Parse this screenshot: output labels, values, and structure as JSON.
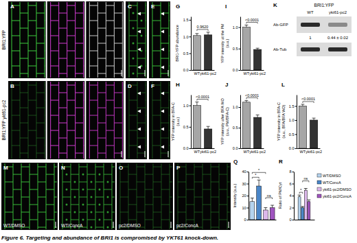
{
  "row_labels": [
    "BRI1:YFP",
    "BRI1:YFP ykt61-pc2"
  ],
  "images": [
    {
      "label": "A"
    },
    {
      "label": "B"
    },
    {
      "label": "C"
    },
    {
      "label": "D"
    },
    {
      "label": "E"
    },
    {
      "label": "F"
    },
    {
      "label": "M",
      "text": "WT/DMSO"
    },
    {
      "label": "N",
      "text": "WT/ConcA"
    },
    {
      "label": "O",
      "text": "pc2/DMSO"
    },
    {
      "label": "P",
      "text": "pc2/ConcA"
    }
  ],
  "blot": {
    "label": "K",
    "title": "BRI1:YFP",
    "lanes": [
      "WT",
      "ykt61-pc2"
    ],
    "rows": [
      "Ab-GFP",
      "Ab-Tub"
    ],
    "quantification": [
      "1",
      "0.44 ± 0.02"
    ]
  },
  "chart_data": [
    {
      "type": "bar",
      "title": "G",
      "y_label": [
        "BRI1-YFP abundance"
      ],
      "categories": [
        "WT",
        "ykt61-pc2"
      ],
      "values": [
        1.03,
        1.05
      ],
      "errors": [
        0.06,
        0.08
      ],
      "colors": [
        "#a6a6a6",
        "#333333"
      ],
      "ylim": [
        0,
        1.6
      ],
      "yticks": [
        {
          "value": 0,
          "label": "0.0"
        },
        0.5,
        {
          "value": 1,
          "label": "1.0"
        },
        1.5
      ],
      "annotations": [
        {
          "text": "0.9620",
          "between": [
            0,
            1
          ]
        }
      ]
    },
    {
      "type": "bar",
      "title": "H",
      "y_label": [
        "YFP intensity in BFA-C",
        "(a.u.)"
      ],
      "categories": [
        "WT",
        "ykt61-pc2"
      ],
      "values": [
        1,
        0.45
      ],
      "errors": [
        0.08,
        0.06
      ],
      "colors": [
        "#a6a6a6",
        "#333333"
      ],
      "ylim": [
        0,
        1.25
      ],
      "yticks": [
        {
          "value": 0,
          "label": "0.0"
        },
        0.5,
        {
          "value": 1,
          "label": "1.0"
        }
      ],
      "annotations": [
        {
          "text": "<0.0001",
          "between": [
            0,
            1
          ]
        }
      ]
    },
    {
      "type": "bar",
      "title": "I",
      "y_label": [
        "YFP intensity at the PM",
        "(a.u.)"
      ],
      "categories": [
        "WT",
        "ykt61-pc2"
      ],
      "values": [
        1,
        0.48
      ],
      "errors": [
        0.05,
        0.03
      ],
      "colors": [
        "#a6a6a6",
        "#333333"
      ],
      "ylim": [
        0,
        1.25
      ],
      "yticks": [
        {
          "value": 0,
          "label": "0.0"
        },
        0.5,
        {
          "value": 1,
          "label": "1.0"
        }
      ],
      "annotations": [
        {
          "text": "<0.0001",
          "between": [
            0,
            1
          ]
        }
      ]
    },
    {
      "type": "bar",
      "title": "J",
      "y_label": [
        "YFP intensity after BFA WO",
        "(a.u., PM/BFA-C)"
      ],
      "categories": [
        "WT",
        "ykt61-pc2"
      ],
      "values": [
        1.12,
        0.75
      ],
      "errors": [
        0.04,
        0.06
      ],
      "colors": [
        "#a6a6a6",
        "#333333"
      ],
      "ylim": [
        0,
        1.3
      ],
      "yticks": [
        {
          "value": 0,
          "label": "0.0"
        },
        0.5,
        {
          "value": 1,
          "label": "1.0"
        }
      ],
      "annotations": [
        {
          "text": "<0.0001",
          "between": [
            0,
            1
          ]
        }
      ]
    },
    {
      "type": "bar",
      "title": "L",
      "y_label": [
        "YFP intensity in BFA-C",
        "(a.u., BFA/BFA WO)"
      ],
      "categories": [
        "WT",
        "ykt61-pc2"
      ],
      "values": [
        1.5,
        1
      ],
      "errors": [
        0.06,
        0.07
      ],
      "colors": [
        "#a6a6a6",
        "#333333"
      ],
      "ylim": [
        0,
        1.9
      ],
      "yticks": [
        {
          "value": 0,
          "label": "0.0"
        },
        0.5,
        {
          "value": 1,
          "label": "1.0"
        },
        1.5
      ],
      "annotations": [
        {
          "text": "<0.0001",
          "between": [
            0,
            1
          ]
        }
      ]
    },
    {
      "type": "bar",
      "title": "Q",
      "y_label": [
        "Intensity (a.u.)"
      ],
      "categories": [
        null,
        null,
        null,
        null
      ],
      "values": [
        15,
        28,
        8,
        10
      ],
      "errors": [
        3,
        5,
        2,
        2
      ],
      "colors": [
        "#b4d3ee",
        "#4a86c8",
        "#dcb8ea",
        "#a055c0"
      ],
      "ylim": [
        0,
        40
      ],
      "yticks": [
        0,
        10,
        20,
        30,
        40
      ],
      "annotations": [
        {
          "text": "*",
          "between": [
            0,
            1
          ]
        },
        {
          "text": "*",
          "between": [
            0,
            2
          ]
        },
        {
          "text": "ns",
          "between": [
            2,
            3
          ]
        }
      ]
    },
    {
      "type": "bar",
      "title": "R",
      "y_label": [
        "Ratio of PM/Cyt"
      ],
      "categories": [
        null
      ],
      "series": [
        {
          "name": "WT/DMSO",
          "color": "#b4d3ee",
          "values": [
            3.8
          ],
          "errors": [
            0.3
          ]
        },
        {
          "name": "WT/ConcA",
          "color": "#4a86c8",
          "values": [
            2
          ],
          "errors": [
            0.2
          ]
        },
        {
          "name": "ykt61-pc2/DMSO",
          "color": "#dcb8ea",
          "values": [
            4.9
          ],
          "errors": [
            0.3
          ]
        },
        {
          "name": "ykt61-pc2/ConcA",
          "color": "#a055c0",
          "values": [
            3
          ],
          "errors": [
            0.3
          ]
        }
      ],
      "legend": "right",
      "ylim": [
        0,
        8
      ],
      "yticks": [
        0,
        2,
        4,
        6,
        8
      ],
      "annotations": [
        {
          "text": "*",
          "between": [
            0,
            1
          ]
        },
        {
          "text": "ns",
          "between": [
            1,
            3
          ]
        }
      ]
    }
  ],
  "caption": "Figure 6. Targeting and abundance of BRI1 is compromised by YKT61 knock-down."
}
